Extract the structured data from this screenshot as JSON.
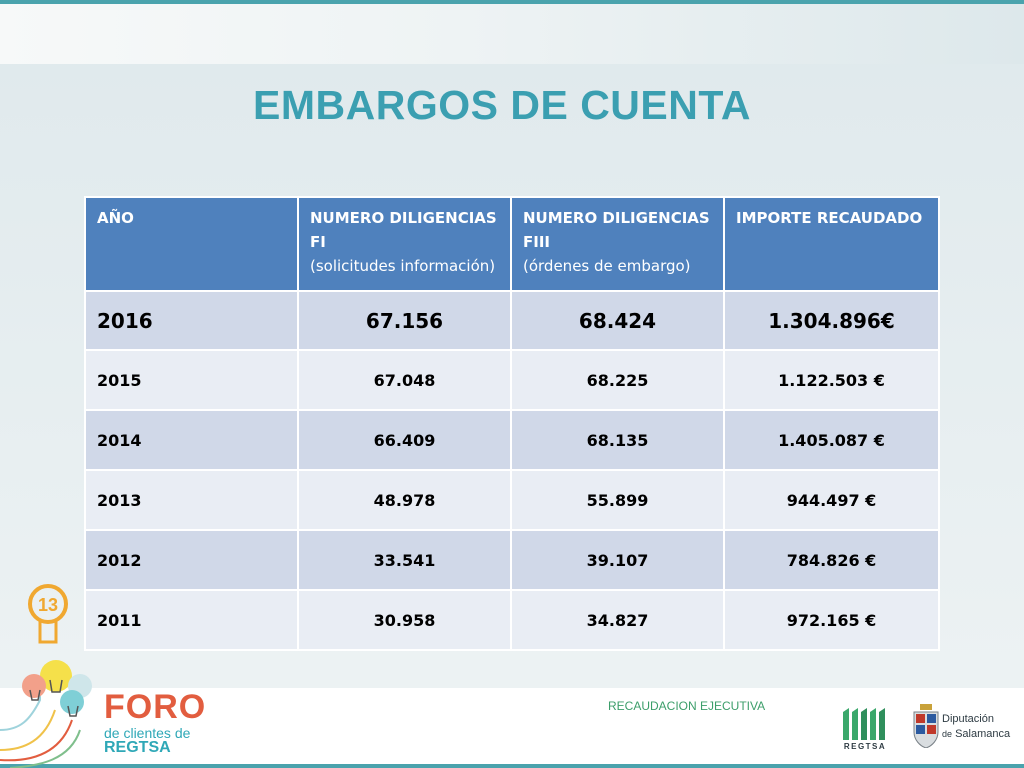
{
  "title": "EMBARGOS DE CUENTA",
  "table": {
    "headers": [
      {
        "main": "AÑO",
        "sub": ""
      },
      {
        "main": "NUMERO DILIGENCIAS FI",
        "sub": "(solicitudes información)"
      },
      {
        "main": "NUMERO DILIGENCIAS FIII",
        "sub": "(órdenes de embargo)"
      },
      {
        "main": "IMPORTE RECAUDADO",
        "sub": ""
      }
    ],
    "rows": [
      {
        "year": "2016",
        "fi": "67.156",
        "fiii": "68.424",
        "importe": "1.304.896€"
      },
      {
        "year": "2015",
        "fi": "67.048",
        "fiii": "68.225",
        "importe": "1.122.503 €"
      },
      {
        "year": "2014",
        "fi": "66.409",
        "fiii": "68.135",
        "importe": "1.405.087 €"
      },
      {
        "year": "2013",
        "fi": "48.978",
        "fiii": "55.899",
        "importe": "944.497 €"
      },
      {
        "year": "2012",
        "fi": "33.541",
        "fiii": "39.107",
        "importe": "784.826 €"
      },
      {
        "year": "2011",
        "fi": "30.958",
        "fiii": "34.827",
        "importe": "972.165 €"
      }
    ]
  },
  "footer": {
    "section_label": "RECAUDACION EJECUTIVA",
    "foro_logo": {
      "line1": "FORO",
      "line2": "de clientes de",
      "line3": "REGTSA",
      "badge": "13"
    },
    "regtsa_logo": {
      "label": "REGTSA"
    },
    "diputacion_logo": {
      "line1": "Diputación",
      "line2_prefix": "de",
      "line2": "Salamanca"
    }
  },
  "colors": {
    "title": "#3b9fb1",
    "header_bg": "#4f81bd",
    "row_dark": "#d0d8e8",
    "row_light": "#e9edf4",
    "accent_line": "#4aa3ad",
    "footer_text": "#3c9e6a",
    "foro_orange": "#e25d3f",
    "foro_teal": "#2fa8b7"
  },
  "icons": [
    "lightbulb-icon",
    "regtsa-logo-icon",
    "coat-of-arms-icon"
  ]
}
